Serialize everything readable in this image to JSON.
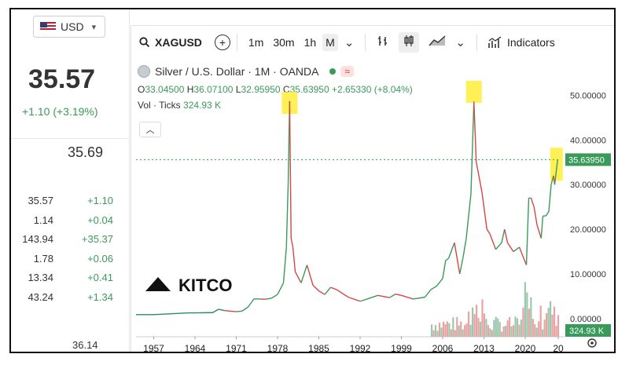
{
  "sidebar": {
    "currency": "USD",
    "price": "35.57",
    "change": "+1.10 (+3.19%)",
    "price2": "35.69",
    "rows": [
      {
        "a": "35.57",
        "b": "+1.10"
      },
      {
        "a": "1.14",
        "b": "+0.04"
      },
      {
        "a": "143.94",
        "b": "+35.37"
      },
      {
        "a": "1.78",
        "b": "+0.06"
      },
      {
        "a": "13.34",
        "b": "+0.41"
      },
      {
        "a": "43.24",
        "b": "+1.34"
      }
    ],
    "bottom": "36.14"
  },
  "toolbar": {
    "symbol": "XAGUSD",
    "intervals": [
      "1m",
      "30m",
      "1h",
      "M"
    ],
    "active_interval": "M",
    "indicators": "Indicators"
  },
  "legend": {
    "title": "Silver / U.S. Dollar · 1M · OANDA",
    "flag": "≈",
    "o_label": "O",
    "o": "33.04500",
    "h_label": "H",
    "h": "36.07100",
    "l_label": "L",
    "l": "32.95950",
    "c_label": "C",
    "c": "35.63950",
    "chg": "+2.65330 (+8.04%)",
    "vol_label": "Vol · Ticks",
    "vol": "324.93 K"
  },
  "watermark": "KITCO",
  "colors": {
    "up": "#3a9a5a",
    "down": "#d64545",
    "highlight": "#ffee44"
  },
  "chart_data": {
    "type": "line",
    "title": "Silver / U.S. Dollar · 1M · OANDA",
    "x_ticks": [
      "1957",
      "1964",
      "1971",
      "1978",
      "1985",
      "1992",
      "1999",
      "2006",
      "2013",
      "2020",
      "20"
    ],
    "y_ticks": [
      "50.00000",
      "40.00000",
      "30.00000",
      "20.00000",
      "10.00000",
      "0.00000"
    ],
    "ylim": [
      -3,
      55
    ],
    "xlim": [
      1954,
      2026
    ],
    "last_price_label": "35.63950",
    "volume_label": "324.93 K",
    "series": [
      {
        "x": [
          1954,
          1957,
          1963,
          1964,
          1967,
          1968,
          1969,
          1971,
          1972,
          1973,
          1974,
          1975,
          1976,
          1977,
          1978,
          1979,
          1979.5,
          1979.8,
          1980.05,
          1980.3,
          1980.6,
          1981,
          1982,
          1983,
          1984,
          1985,
          1986,
          1987,
          1988,
          1990,
          1992,
          1993,
          1995,
          1997,
          1998,
          1999,
          2001,
          2003,
          2004,
          2005,
          2006,
          2006.5,
          2007,
          2008,
          2008.9,
          2009.5,
          2010,
          2010.8,
          2011.3,
          2011.7,
          2012,
          2012.7,
          2013.5,
          2014,
          2015,
          2016,
          2016.5,
          2017,
          2018,
          2019,
          2020.2,
          2020.6,
          2021,
          2021.5,
          2022,
          2022.7,
          2023,
          2023.5,
          2024,
          2024.4,
          2024.8,
          2025,
          2025.5
        ],
        "y": [
          0.9,
          0.9,
          1.29,
          1.29,
          1.35,
          2.1,
          1.8,
          1.55,
          1.7,
          2.6,
          4.4,
          4.4,
          4.35,
          4.6,
          5.4,
          8,
          16,
          30,
          48.7,
          18,
          16,
          10.5,
          8,
          12,
          7.5,
          6.2,
          5.4,
          7,
          6.5,
          4.8,
          3.9,
          4.3,
          5.2,
          4.7,
          5.5,
          5.2,
          4.4,
          4.8,
          6.5,
          7.3,
          9,
          13,
          13.5,
          17,
          10,
          14,
          18,
          28,
          48.6,
          35,
          33,
          28,
          20,
          19,
          15.5,
          17,
          20,
          17,
          15,
          16,
          12,
          27,
          27,
          25,
          21,
          18,
          23,
          23,
          24,
          30,
          32,
          30,
          35.6
        ]
      }
    ]
  }
}
